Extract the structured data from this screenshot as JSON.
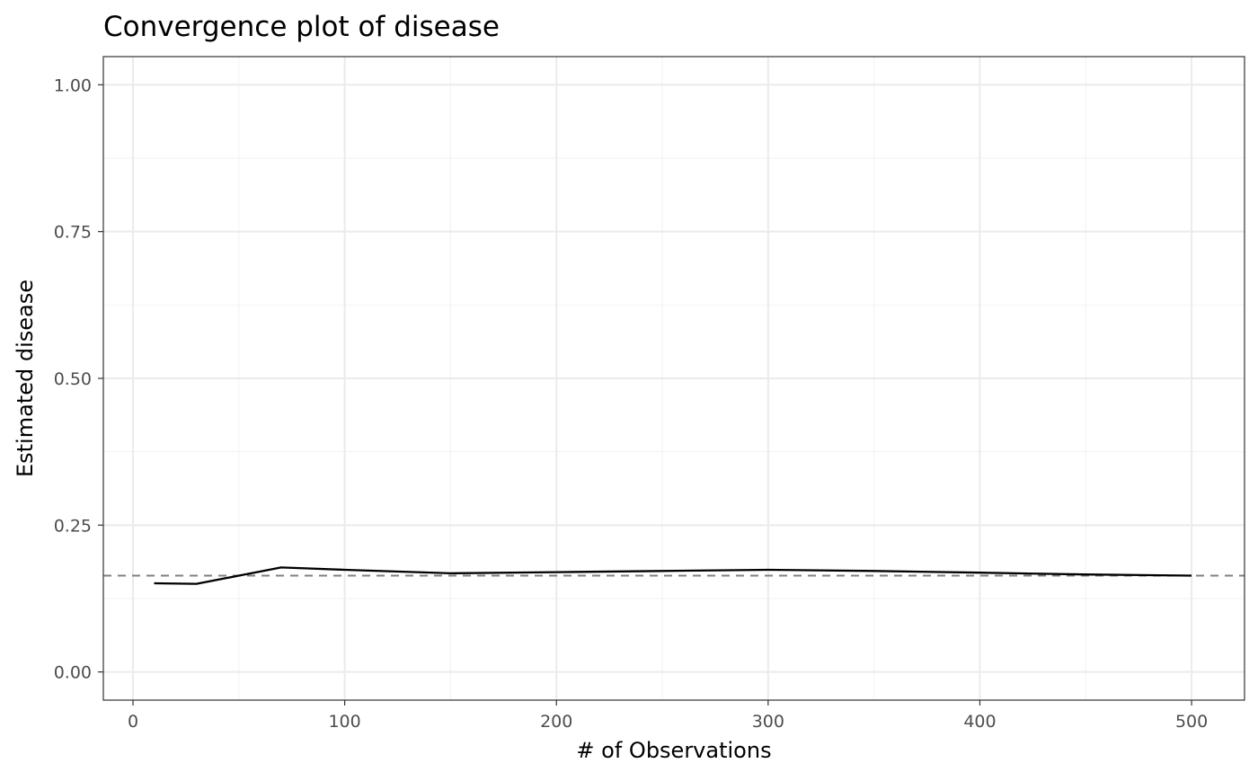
{
  "chart_data": {
    "type": "line",
    "title": "Convergence plot of disease",
    "xlabel": "# of Observations",
    "ylabel": "Estimated disease",
    "xlim": [
      -14,
      525
    ],
    "ylim": [
      -0.048,
      1.048
    ],
    "x_ticks": [
      0,
      100,
      200,
      300,
      400,
      500
    ],
    "x_tick_labels": [
      "0",
      "100",
      "200",
      "300",
      "400",
      "500"
    ],
    "x_minor_ticks": [
      50,
      150,
      250,
      350,
      450
    ],
    "y_ticks": [
      0,
      0.25,
      0.5,
      0.75,
      1.0
    ],
    "y_tick_labels": [
      "0.00",
      "0.25",
      "0.50",
      "0.75",
      "1.00"
    ],
    "y_minor_ticks": [
      0.125,
      0.375,
      0.625,
      0.875
    ],
    "grid": true,
    "legend": "none",
    "series": [
      {
        "x": [
          10,
          30,
          50,
          70,
          100,
          150,
          200,
          250,
          300,
          350,
          400,
          450,
          500
        ],
        "values": [
          0.151,
          0.15,
          0.164,
          0.178,
          0.174,
          0.168,
          0.17,
          0.172,
          0.174,
          0.172,
          0.169,
          0.166,
          0.164
        ],
        "color": "#000000",
        "style": "solid"
      }
    ],
    "reference_line": {
      "y": 0.164,
      "color": "#808080",
      "style": "dashed"
    }
  }
}
